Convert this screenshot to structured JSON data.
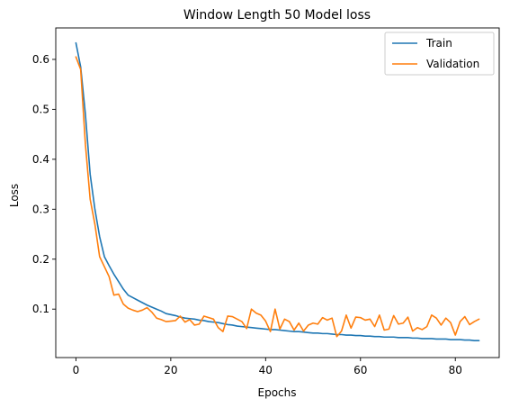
{
  "chart_data": {
    "type": "line",
    "title": "Window Length 50 Model loss",
    "xlabel": "Epochs",
    "ylabel": "Loss",
    "xlim": [
      -4.25,
      89.25
    ],
    "ylim": [
      0.003,
      0.663
    ],
    "xticks": [
      0,
      20,
      40,
      60,
      80
    ],
    "yticks": [
      0.1,
      0.2,
      0.3,
      0.4,
      0.5,
      0.6
    ],
    "grid": false,
    "legend_position": "top-right",
    "series": [
      {
        "name": "Train",
        "color": "#1f77b4",
        "x": [
          0,
          1,
          2,
          3,
          4,
          5,
          6,
          7,
          8,
          9,
          10,
          11,
          12,
          13,
          14,
          15,
          16,
          17,
          18,
          19,
          20,
          21,
          22,
          23,
          24,
          25,
          26,
          27,
          28,
          29,
          30,
          31,
          32,
          33,
          34,
          35,
          36,
          37,
          38,
          39,
          40,
          41,
          42,
          43,
          44,
          45,
          46,
          47,
          48,
          49,
          50,
          51,
          52,
          53,
          54,
          55,
          56,
          57,
          58,
          59,
          60,
          61,
          62,
          63,
          64,
          65,
          66,
          67,
          68,
          69,
          70,
          71,
          72,
          73,
          74,
          75,
          76,
          77,
          78,
          79,
          80,
          81,
          82,
          83,
          84,
          85
        ],
        "values": [
          0.633,
          0.585,
          0.49,
          0.37,
          0.3,
          0.245,
          0.205,
          0.187,
          0.17,
          0.155,
          0.14,
          0.128,
          0.123,
          0.118,
          0.113,
          0.108,
          0.104,
          0.1,
          0.096,
          0.091,
          0.089,
          0.087,
          0.084,
          0.082,
          0.081,
          0.08,
          0.078,
          0.077,
          0.075,
          0.074,
          0.073,
          0.071,
          0.069,
          0.068,
          0.066,
          0.065,
          0.064,
          0.063,
          0.062,
          0.061,
          0.06,
          0.059,
          0.059,
          0.058,
          0.057,
          0.056,
          0.055,
          0.055,
          0.054,
          0.053,
          0.052,
          0.052,
          0.051,
          0.051,
          0.05,
          0.049,
          0.049,
          0.048,
          0.048,
          0.047,
          0.047,
          0.046,
          0.046,
          0.045,
          0.045,
          0.044,
          0.044,
          0.044,
          0.043,
          0.043,
          0.043,
          0.042,
          0.042,
          0.041,
          0.041,
          0.041,
          0.04,
          0.04,
          0.04,
          0.039,
          0.039,
          0.039,
          0.038,
          0.038,
          0.037,
          0.037
        ]
      },
      {
        "name": "Validation",
        "color": "#ff7f0e",
        "x": [
          0,
          1,
          2,
          3,
          4,
          5,
          6,
          7,
          8,
          9,
          10,
          11,
          12,
          13,
          14,
          15,
          16,
          17,
          18,
          19,
          20,
          21,
          22,
          23,
          24,
          25,
          26,
          27,
          28,
          29,
          30,
          31,
          32,
          33,
          34,
          35,
          36,
          37,
          38,
          39,
          40,
          41,
          42,
          43,
          44,
          45,
          46,
          47,
          48,
          49,
          50,
          51,
          52,
          53,
          54,
          55,
          56,
          57,
          58,
          59,
          60,
          61,
          62,
          63,
          64,
          65,
          66,
          67,
          68,
          69,
          70,
          71,
          72,
          73,
          74,
          75,
          76,
          77,
          78,
          79,
          80,
          81,
          82,
          83,
          84,
          85
        ],
        "values": [
          0.605,
          0.58,
          0.43,
          0.32,
          0.27,
          0.205,
          0.185,
          0.165,
          0.128,
          0.13,
          0.11,
          0.102,
          0.098,
          0.095,
          0.098,
          0.103,
          0.094,
          0.082,
          0.079,
          0.075,
          0.076,
          0.077,
          0.086,
          0.074,
          0.079,
          0.068,
          0.07,
          0.086,
          0.083,
          0.08,
          0.063,
          0.055,
          0.086,
          0.085,
          0.08,
          0.075,
          0.061,
          0.1,
          0.092,
          0.088,
          0.076,
          0.055,
          0.1,
          0.06,
          0.08,
          0.075,
          0.058,
          0.072,
          0.056,
          0.068,
          0.072,
          0.07,
          0.083,
          0.078,
          0.082,
          0.045,
          0.056,
          0.088,
          0.062,
          0.084,
          0.083,
          0.078,
          0.08,
          0.065,
          0.088,
          0.058,
          0.06,
          0.087,
          0.07,
          0.072,
          0.084,
          0.056,
          0.063,
          0.059,
          0.065,
          0.088,
          0.082,
          0.068,
          0.082,
          0.073,
          0.048,
          0.075,
          0.085,
          0.069,
          0.075,
          0.08
        ]
      }
    ]
  }
}
